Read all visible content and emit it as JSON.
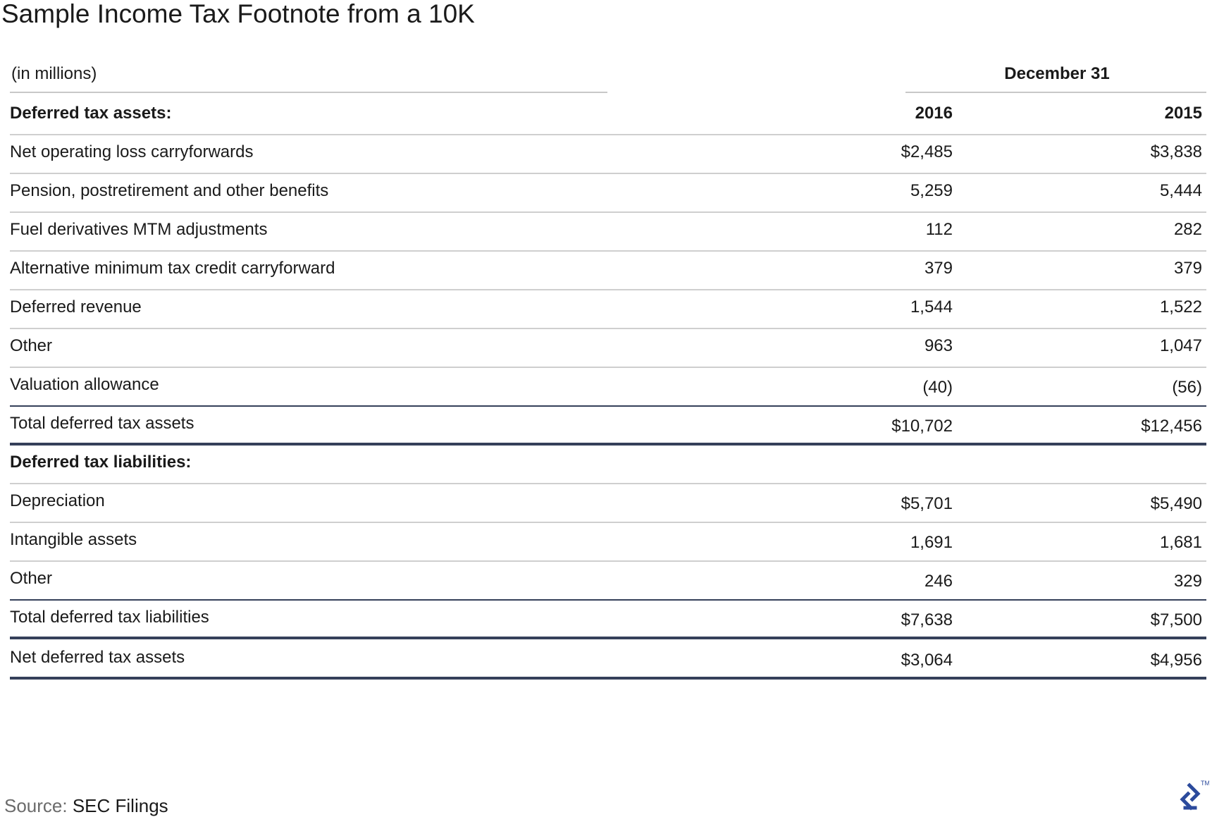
{
  "title": "Sample Income Tax Footnote from a 10K",
  "units_label": "(in millions)",
  "period_label": "December 31",
  "columns": [
    "2016",
    "2015"
  ],
  "sections": {
    "assets_header": "Deferred tax assets:",
    "liabilities_header": "Deferred tax liabilities:"
  },
  "assets": [
    {
      "label": "Net operating loss carryforwards",
      "v2016": "$2,485",
      "v2015": "$3,838"
    },
    {
      "label": "Pension, postretirement and other benefits",
      "v2016": "5,259",
      "v2015": "5,444"
    },
    {
      "label": "Fuel derivatives MTM adjustments",
      "v2016": "112",
      "v2015": "282"
    },
    {
      "label": "Alternative minimum tax credit carryforward",
      "v2016": "379",
      "v2015": "379"
    },
    {
      "label": "Deferred revenue",
      "v2016": "1,544",
      "v2015": "1,522"
    },
    {
      "label": "Other",
      "v2016": "963",
      "v2015": "1,047"
    },
    {
      "label": "Valuation allowance",
      "v2016": "(40)",
      "v2015": "(56)"
    }
  ],
  "assets_total": {
    "label": "Total deferred tax assets",
    "v2016": "$10,702",
    "v2015": "$12,456"
  },
  "liabilities": [
    {
      "label": "Depreciation",
      "v2016": "$5,701",
      "v2015": "$5,490"
    },
    {
      "label": "Intangible assets",
      "v2016": "1,691",
      "v2015": "1,681"
    },
    {
      "label": "Other",
      "v2016": "246",
      "v2015": "329"
    }
  ],
  "liabilities_total": {
    "label": "Total deferred tax liabilities",
    "v2016": "$7,638",
    "v2015": "$7,500"
  },
  "net": {
    "label": "Net deferred tax assets",
    "v2016": "$3,064",
    "v2015": "$4,956"
  },
  "source": {
    "prefix": "Source:",
    "name": "SEC Filings"
  },
  "logo": {
    "icon": "toptal-logo-icon",
    "trademark": "TM",
    "color": "#2b4a9c"
  }
}
